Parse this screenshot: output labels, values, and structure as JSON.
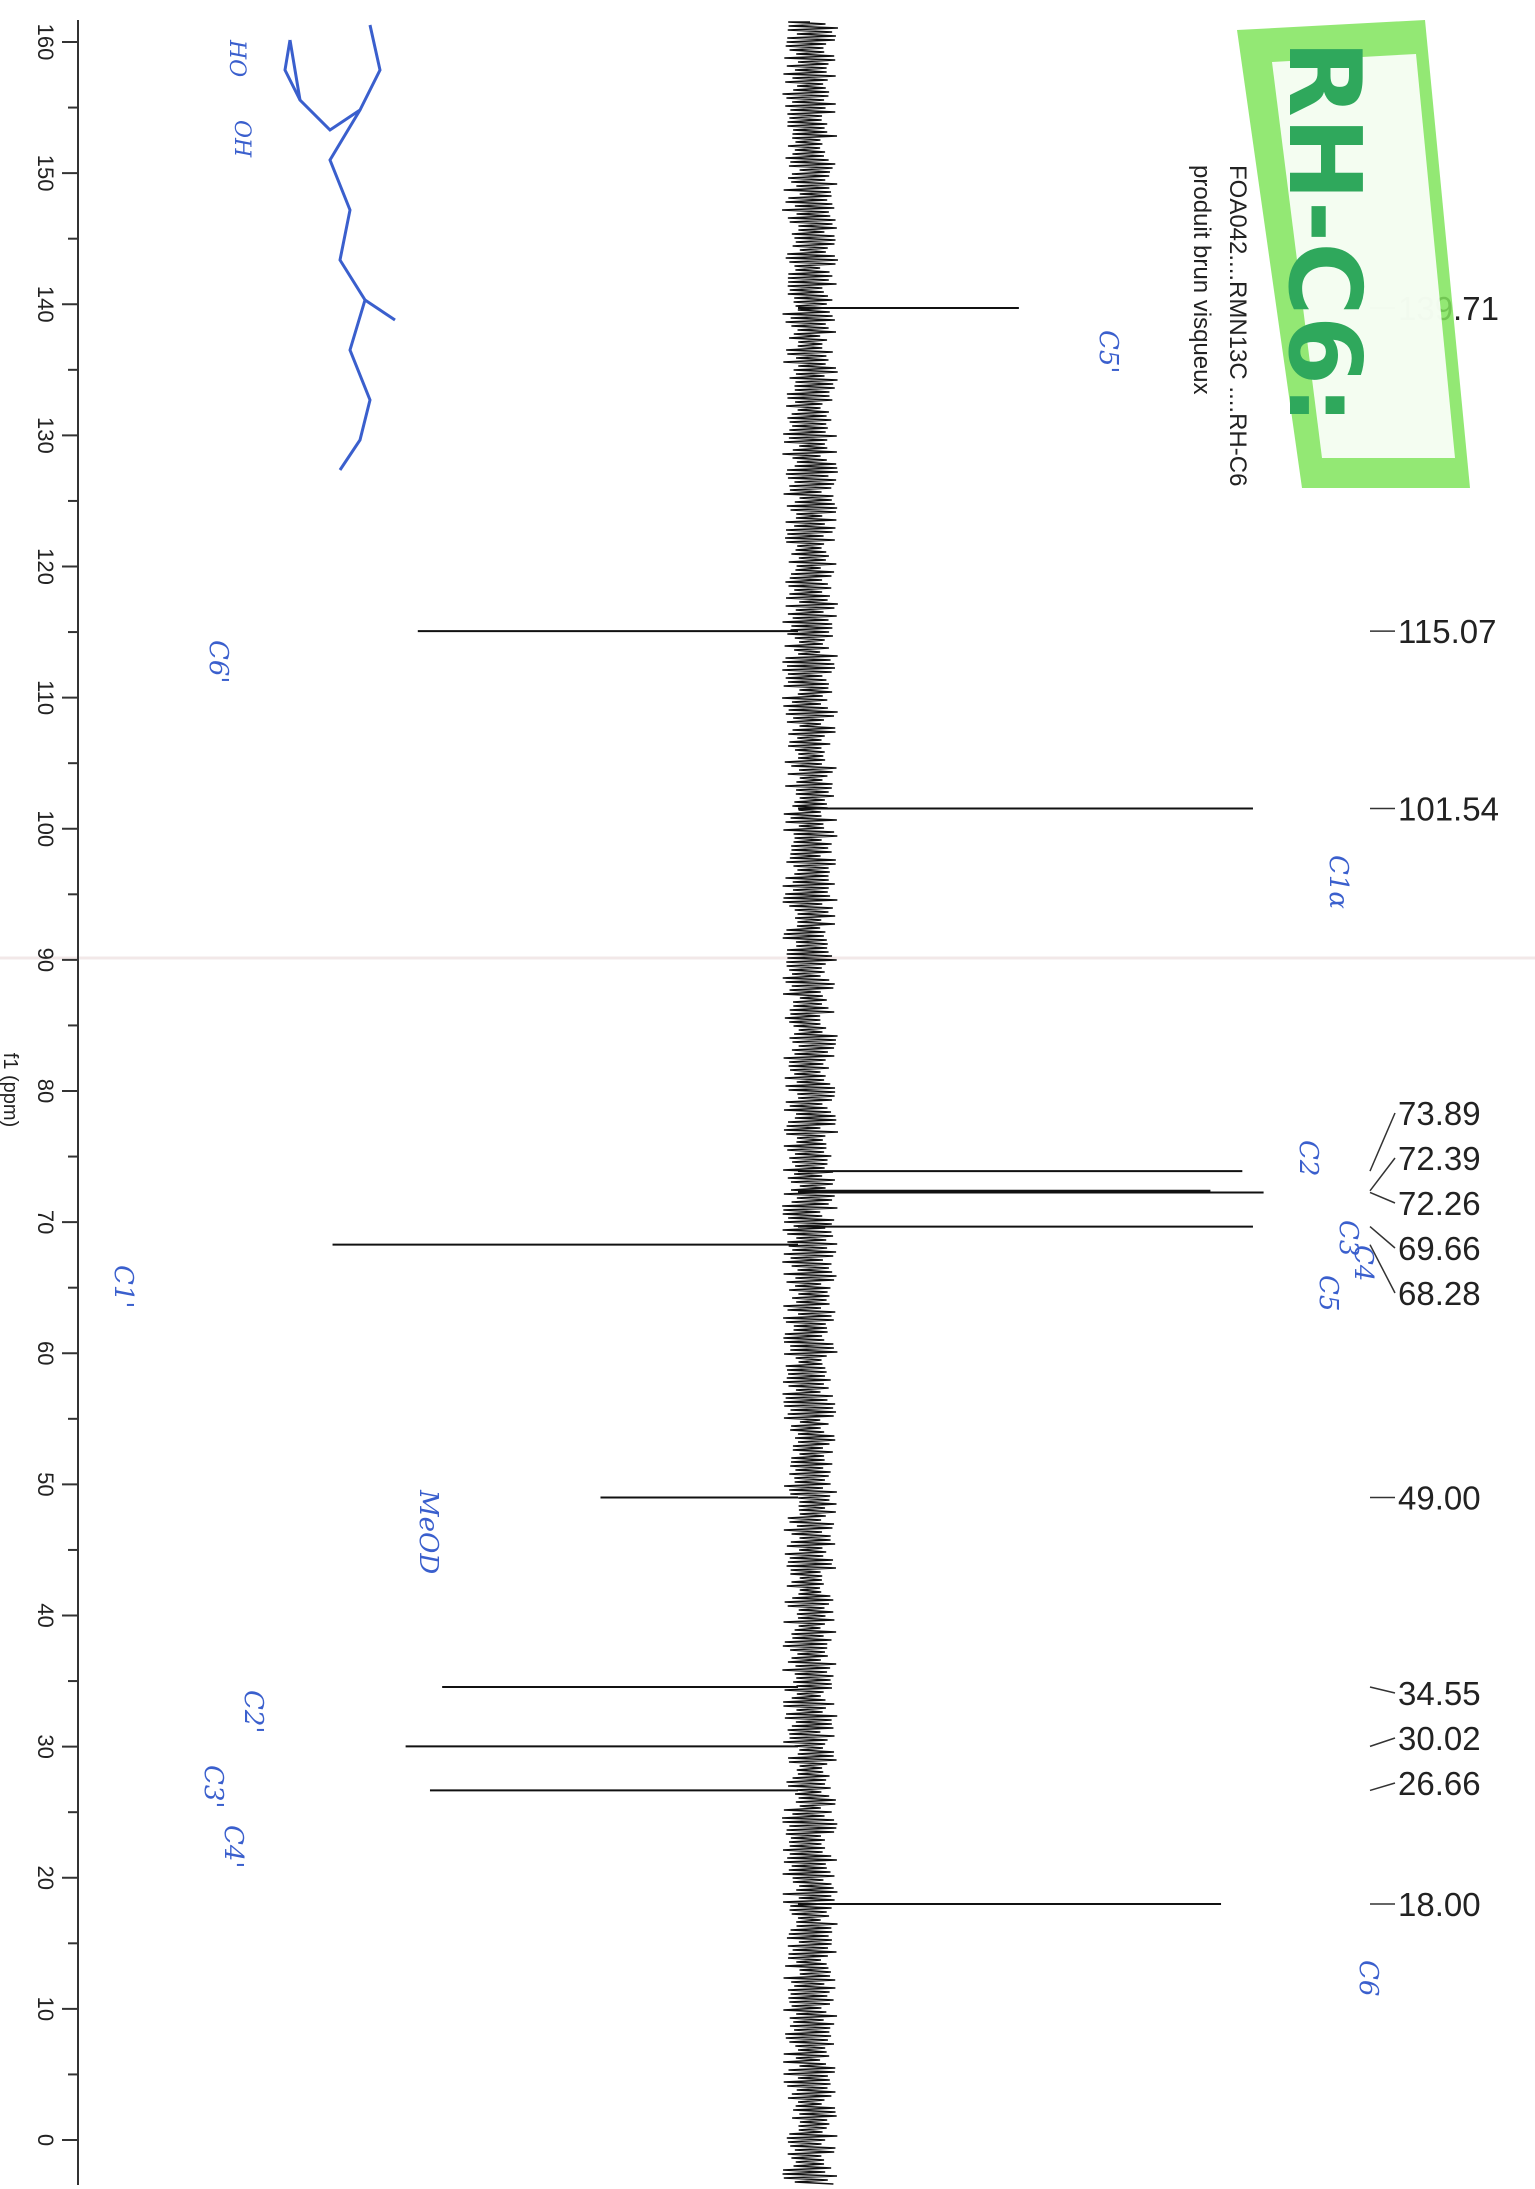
{
  "chart_data": {
    "type": "line",
    "orientation": "rotated-90",
    "title": "FOA042....RMN13C ....RH-C6",
    "subtitle": "produit brun visqueux",
    "xlabel": "f1 (ppm)",
    "ylabel": "",
    "xlim": [
      0,
      160
    ],
    "ticks": [
      "0",
      "10",
      "20",
      "30",
      "40",
      "50",
      "60",
      "70",
      "80",
      "90",
      "100",
      "110",
      "120",
      "130",
      "140",
      "150",
      "160"
    ],
    "series": [
      {
        "peaks": [
          {
            "x": 139.71,
            "label": "139.71",
            "y": 0.34
          },
          {
            "x": 115.07,
            "label": "115.07",
            "y": 0.69
          },
          {
            "x": 101.54,
            "label": "101.54",
            "y": 0.78
          },
          {
            "x": 73.89,
            "label": "73.89",
            "y": 0.76
          },
          {
            "x": 72.39,
            "label": "72.39",
            "y": 0.7
          },
          {
            "x": 72.26,
            "label": "72.26",
            "y": 0.8
          },
          {
            "x": 69.66,
            "label": "69.66",
            "y": 0.78
          },
          {
            "x": 68.28,
            "label": "68.28",
            "y": 0.83
          },
          {
            "x": 49.0,
            "label": "49.00",
            "y": 0.39
          },
          {
            "x": 34.55,
            "label": "34.55",
            "y": 0.65
          },
          {
            "x": 30.02,
            "label": "30.02",
            "y": 0.71
          },
          {
            "x": 26.66,
            "label": "26.66",
            "y": 0.67
          },
          {
            "x": 18.0,
            "label": "18.00",
            "y": 0.72
          }
        ]
      }
    ],
    "stamp": "RH-C6:",
    "handwritten_annotations": [
      "C5'",
      "C6'",
      "C1α",
      "C2",
      "C3",
      "C4",
      "C5",
      "C1'",
      "MeOD",
      "C2'",
      "C3'",
      "C4'",
      "C6"
    ]
  }
}
